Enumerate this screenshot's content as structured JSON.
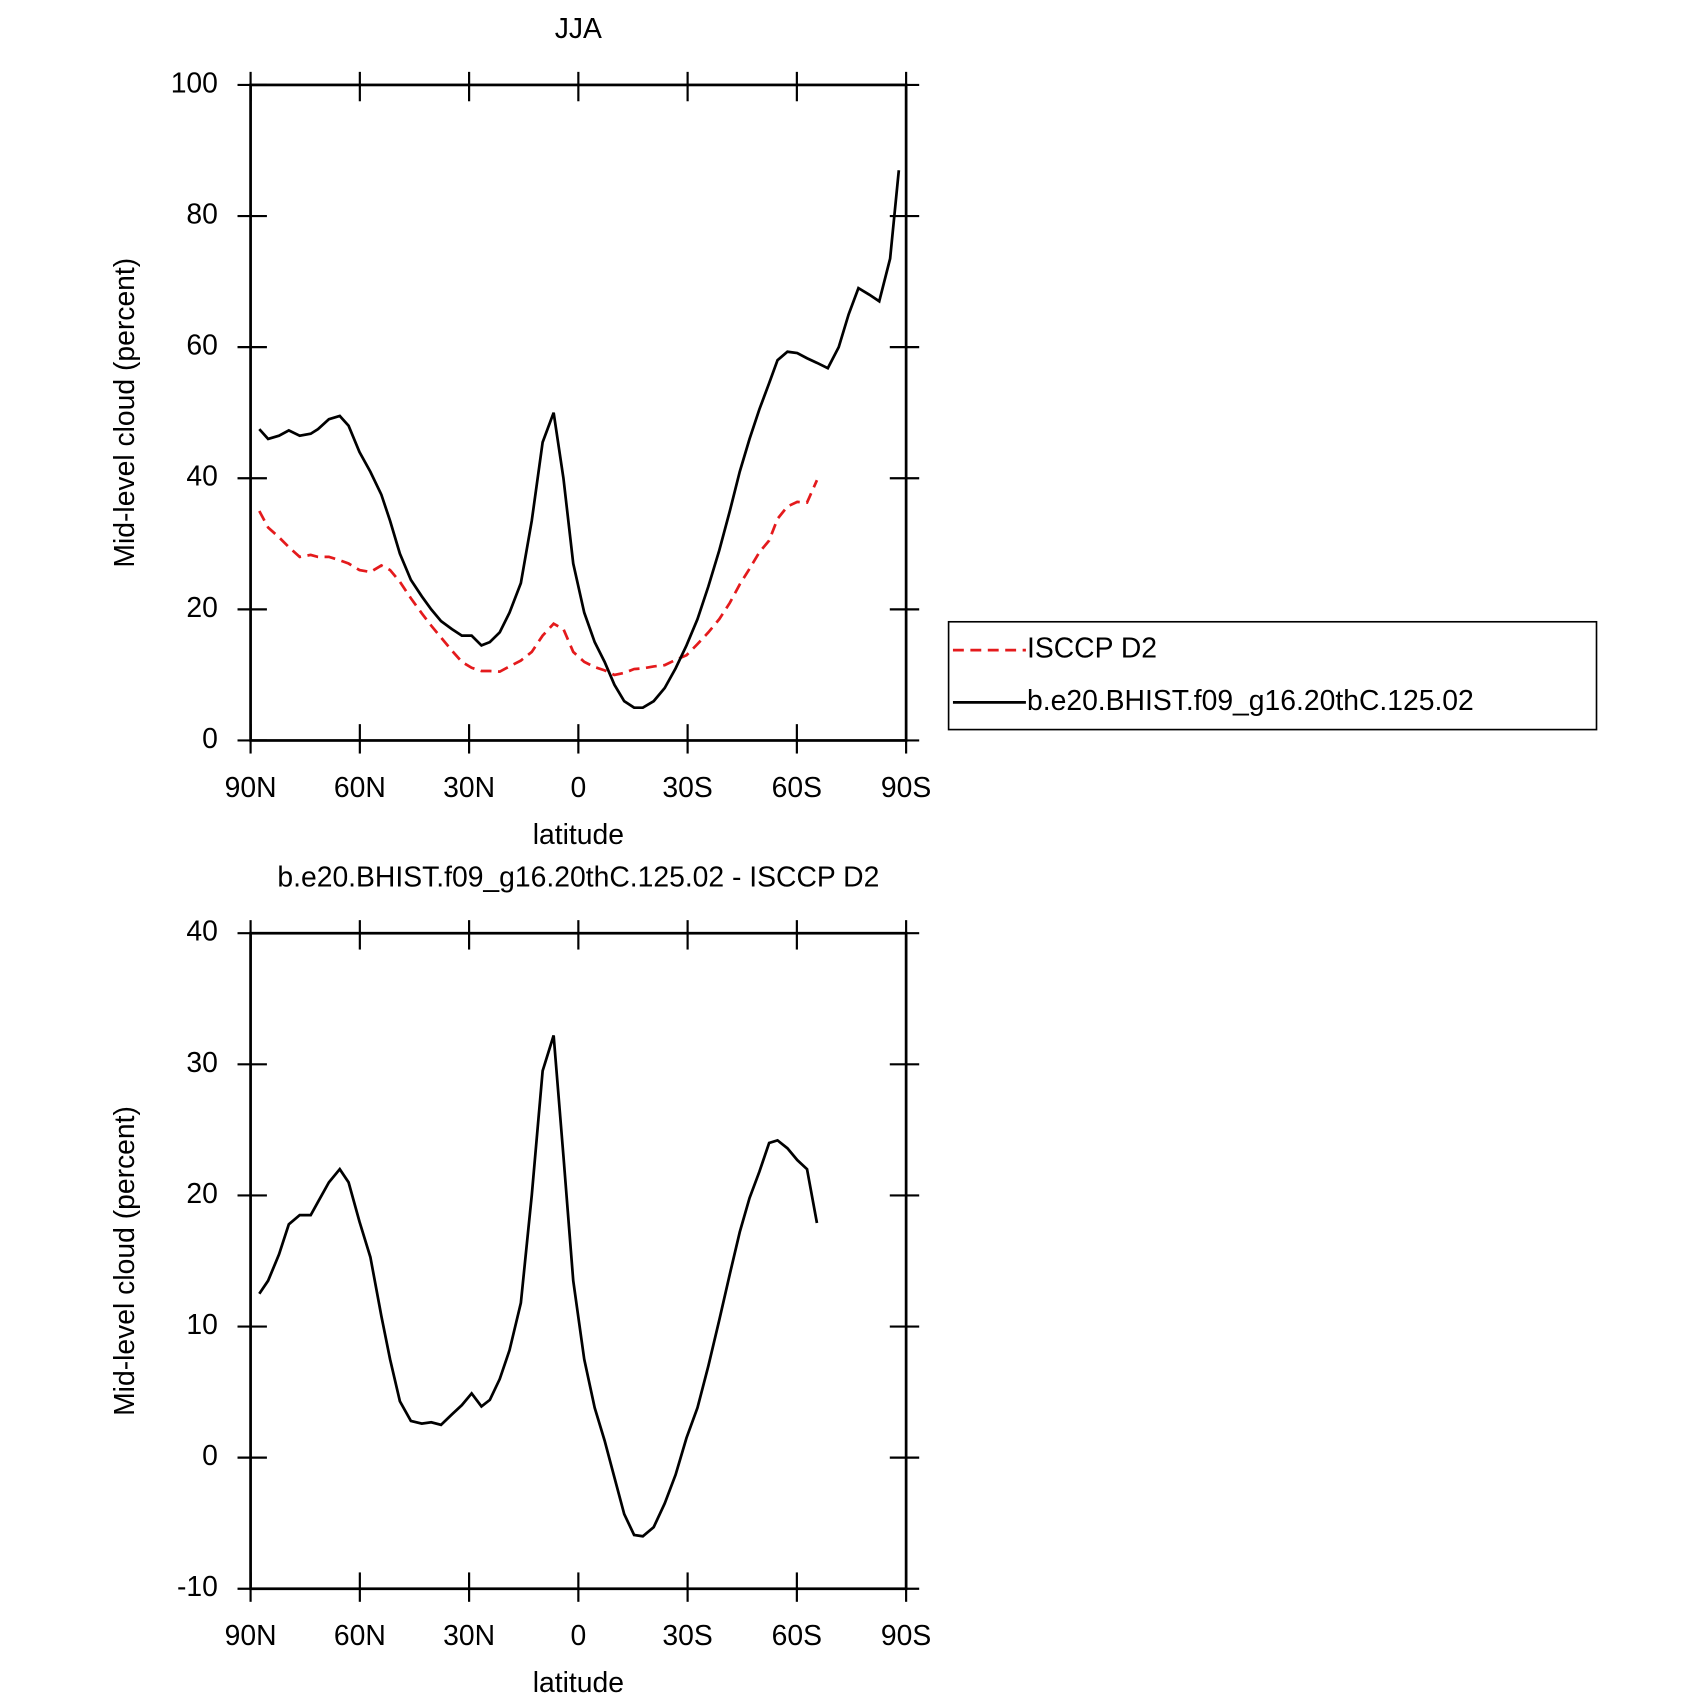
{
  "chart_data": [
    {
      "type": "line",
      "title": "JJA",
      "xlabel": "latitude",
      "ylabel": "Mid-level cloud (percent)",
      "xlim": [
        90,
        -90
      ],
      "xticks": [
        {
          "value": 90,
          "label": "90N"
        },
        {
          "value": 60,
          "label": "60N"
        },
        {
          "value": 30,
          "label": "30N"
        },
        0,
        {
          "value": -30,
          "label": "30S"
        },
        {
          "value": -60,
          "label": "60S"
        },
        {
          "value": -90,
          "label": "90S"
        }
      ],
      "ylim": [
        0,
        100
      ],
      "yticks": [
        0,
        20,
        40,
        60,
        80,
        100
      ],
      "legend": "right",
      "x": [
        87.6,
        85.2,
        82.2,
        79.5,
        76.5,
        73.5,
        71.5,
        68.5,
        65.5,
        63.1,
        60.1,
        57.1,
        54.1,
        51.7,
        49.0,
        46.0,
        43.0,
        40.4,
        37.7,
        34.7,
        32.0,
        29.3,
        26.6,
        24.3,
        21.6,
        18.9,
        15.8,
        12.8,
        9.8,
        6.8,
        4.1,
        1.4,
        -1.6,
        -4.5,
        -7.2,
        -9.9,
        -12.6,
        -15.3,
        -17.7,
        -20.7,
        -23.7,
        -26.7,
        -29.7,
        -32.7,
        -35.7,
        -38.7,
        -41.6,
        -44.3,
        -47.0,
        -49.7,
        -52.4,
        -54.7,
        -57.4,
        -60.1,
        -62.8,
        -65.5,
        -68.5,
        -71.5,
        -74.2,
        -76.9,
        -79.9,
        -82.6,
        -85.6,
        -88.0
      ],
      "series": [
        {
          "name": "ISCCP D2",
          "color": "#e41a1c",
          "dash": true,
          "values": [
            35,
            32.5,
            31,
            29.5,
            28,
            28.3,
            28,
            28,
            27.5,
            27,
            26,
            25.7,
            26.7,
            26,
            24.2,
            21.7,
            19.4,
            17.5,
            15.7,
            13.7,
            12,
            11.1,
            10.6,
            10.6,
            10.5,
            11.3,
            12.2,
            13.5,
            16,
            17.8,
            17,
            13.5,
            12,
            11.2,
            10.7,
            10,
            10.3,
            10.9,
            11,
            11.3,
            11.5,
            12.3,
            13,
            14.7,
            16.5,
            18.5,
            21,
            23.8,
            26.2,
            28.7,
            30.5,
            33.8,
            35.7,
            36.4,
            36.3,
            39.7,
            null,
            null,
            null,
            null,
            null,
            null,
            null,
            null
          ]
        },
        {
          "name": "b.e20.BHIST.f09_g16.20thC.125.02",
          "color": "#000000",
          "dash": false,
          "values": [
            47.5,
            46,
            46.5,
            47.3,
            46.5,
            46.8,
            47.5,
            49,
            49.5,
            48,
            44,
            41,
            37.5,
            33.5,
            28.5,
            24.5,
            22,
            20,
            18.2,
            17,
            16,
            16,
            14.5,
            15,
            16.5,
            19.5,
            24,
            33.5,
            45.5,
            50,
            40,
            27,
            19.5,
            15,
            12,
            8.5,
            6,
            5,
            5,
            6,
            8,
            11,
            14.5,
            18.5,
            23.5,
            29,
            35,
            41,
            46,
            50.5,
            54.5,
            58,
            59.3,
            59.1,
            58.3,
            57.6,
            56.8,
            60,
            65,
            69,
            68,
            67,
            73.5,
            87
          ]
        }
      ]
    },
    {
      "type": "line",
      "title": "b.e20.BHIST.f09_g16.20thC.125.02 - ISCCP D2",
      "xlabel": "latitude",
      "ylabel": "Mid-level cloud (percent)",
      "xlim": [
        90,
        -90
      ],
      "xticks": [
        {
          "value": 90,
          "label": "90N"
        },
        {
          "value": 60,
          "label": "60N"
        },
        {
          "value": 30,
          "label": "30N"
        },
        0,
        {
          "value": -30,
          "label": "30S"
        },
        {
          "value": -60,
          "label": "60S"
        },
        {
          "value": -90,
          "label": "90S"
        }
      ],
      "ylim": [
        -10,
        40
      ],
      "yticks": [
        -10,
        0,
        10,
        20,
        30,
        40
      ],
      "x": [
        87.6,
        85.2,
        82.2,
        79.5,
        76.5,
        73.5,
        71.5,
        68.5,
        65.5,
        63.1,
        60.1,
        57.1,
        54.1,
        51.7,
        49.0,
        46.0,
        43.0,
        40.4,
        37.7,
        34.7,
        32.0,
        29.3,
        26.6,
        24.3,
        21.6,
        18.9,
        15.8,
        12.8,
        9.8,
        6.8,
        4.1,
        1.4,
        -1.6,
        -4.5,
        -7.2,
        -9.9,
        -12.6,
        -15.3,
        -17.7,
        -20.7,
        -23.7,
        -26.7,
        -29.7,
        -32.7,
        -35.7,
        -38.7,
        -41.6,
        -44.3,
        -47.0,
        -49.7,
        -52.4,
        -54.7,
        -57.4,
        -60.1,
        -62.8,
        -65.5,
        -68.5,
        -71.5,
        -74.2,
        -76.9,
        -79.9,
        -82.6,
        -85.6,
        -88.0
      ],
      "series": [
        {
          "color": "#000000",
          "dash": false,
          "values": [
            12.5,
            13.5,
            15.5,
            17.8,
            18.5,
            18.5,
            19.5,
            21,
            22,
            21,
            18,
            15.3,
            10.8,
            7.5,
            4.3,
            2.8,
            2.6,
            2.7,
            2.5,
            3.3,
            4,
            4.9,
            3.9,
            4.4,
            6,
            8.2,
            11.8,
            20,
            29.5,
            32.2,
            23,
            13.5,
            7.5,
            3.8,
            1.3,
            -1.5,
            -4.3,
            -5.9,
            -6,
            -5.3,
            -3.5,
            -1.3,
            1.5,
            3.8,
            7,
            10.5,
            14,
            17.2,
            19.8,
            21.8,
            24,
            24.2,
            23.6,
            22.7,
            22,
            17.9,
            null,
            null,
            null,
            null,
            null,
            null,
            null,
            null
          ]
        }
      ]
    }
  ]
}
